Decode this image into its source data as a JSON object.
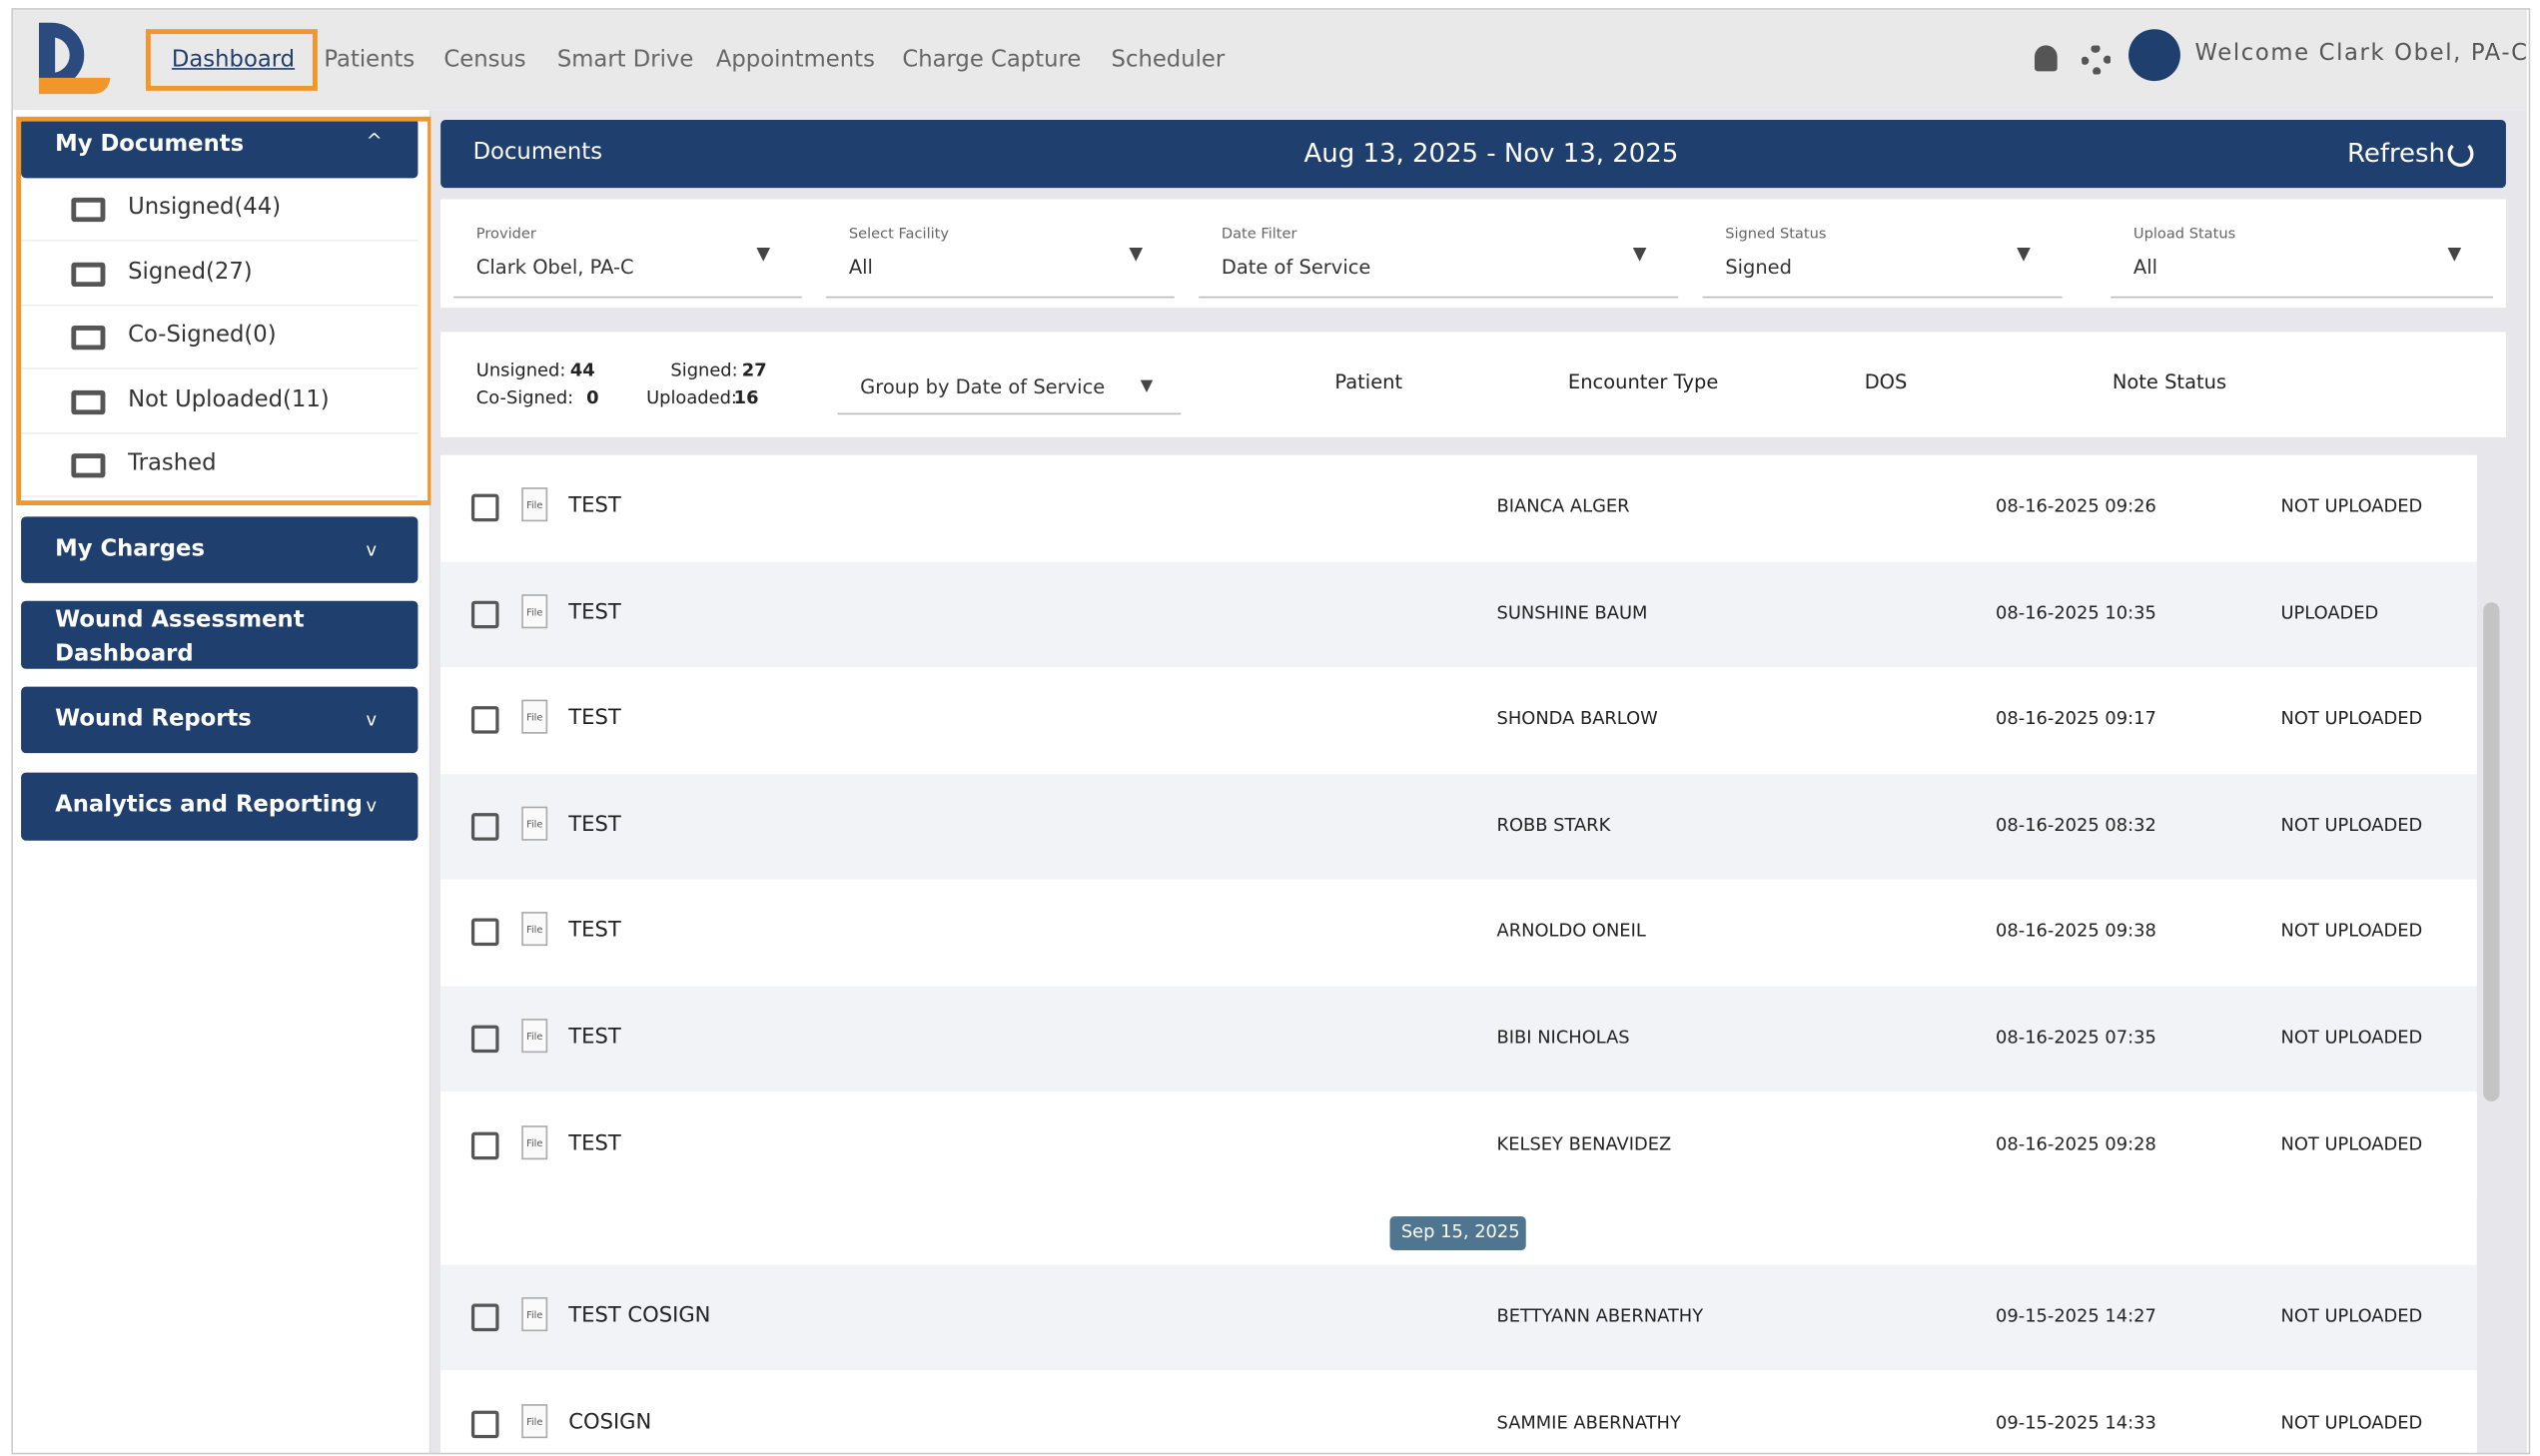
{
  "nav": {
    "items": [
      "Dashboard",
      "Patients",
      "Census",
      "Smart Drive",
      "Appointments",
      "Charge Capture",
      "Scheduler"
    ],
    "welcome": "Welcome Clark Obel, PA-C"
  },
  "sidebar": {
    "my_documents": {
      "title": "My Documents",
      "items": [
        "Unsigned(44)",
        "Signed(27)",
        "Co-Signed(0)",
        "Not Uploaded(11)",
        "Trashed"
      ]
    },
    "sections": [
      "My Charges",
      "Wound Assessment Dashboard",
      "Wound Reports",
      "Analytics and Reporting"
    ]
  },
  "documents": {
    "title": "Documents",
    "date_range": "Aug 13, 2025 - Nov 13, 2025",
    "refresh": "Refresh"
  },
  "filters": [
    {
      "label": "Provider",
      "value": "Clark Obel, PA-C"
    },
    {
      "label": "Select Facility",
      "value": "All"
    },
    {
      "label": "Date Filter",
      "value": "Date of Service"
    },
    {
      "label": "Signed Status",
      "value": "Signed"
    },
    {
      "label": "Upload Status",
      "value": "All"
    }
  ],
  "summary": [
    {
      "label": "Unsigned:",
      "value": 44
    },
    {
      "label": "Signed:",
      "value": 27
    },
    {
      "label": "Co-Signed:",
      "value": 0
    },
    {
      "label": "Uploaded:",
      "value": 16
    }
  ],
  "group_by": "Group by Date of Service",
  "columns": [
    "Patient",
    "Encounter Type",
    "DOS",
    "Note Status"
  ],
  "file_icon_text": "File",
  "rows": [
    {
      "name": "TEST",
      "patient": "BIANCA ALGER",
      "dos": "08-16-2025 09:26",
      "status": "NOT UPLOADED"
    },
    {
      "name": "TEST",
      "patient": "SUNSHINE BAUM",
      "dos": "08-16-2025 10:35",
      "status": "UPLOADED"
    },
    {
      "name": "TEST",
      "patient": "SHONDA BARLOW",
      "dos": "08-16-2025 09:17",
      "status": "NOT UPLOADED"
    },
    {
      "name": "TEST",
      "patient": "ROBB STARK",
      "dos": "08-16-2025 08:32",
      "status": "NOT UPLOADED"
    },
    {
      "name": "TEST",
      "patient": "ARNOLDO ONEIL",
      "dos": "08-16-2025 09:38",
      "status": "NOT UPLOADED"
    },
    {
      "name": "TEST",
      "patient": "BIBI NICHOLAS",
      "dos": "08-16-2025 07:35",
      "status": "NOT UPLOADED"
    },
    {
      "name": "TEST",
      "patient": "KELSEY BENAVIDEZ",
      "dos": "08-16-2025 09:28",
      "status": "NOT UPLOADED"
    }
  ],
  "divider": "Sep 15, 2025",
  "rows_after": [
    {
      "name": "TEST COSIGN",
      "patient": "BETTYANN ABERNATHY",
      "dos": "09-15-2025 14:27",
      "status": "NOT UPLOADED"
    },
    {
      "name": "COSIGN",
      "patient": "SAMMIE ABERNATHY",
      "dos": "09-15-2025 14:33",
      "status": "NOT UPLOADED"
    }
  ]
}
